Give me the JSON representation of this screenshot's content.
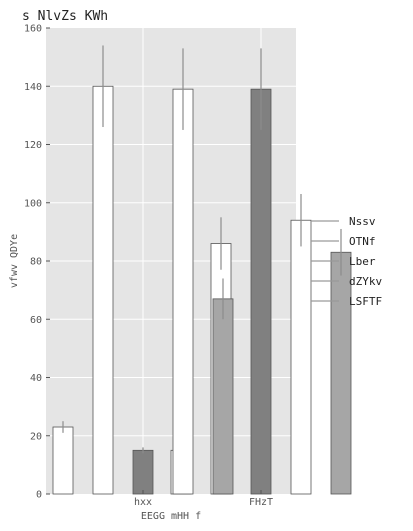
{
  "chart_data": {
    "type": "bar",
    "title": "s NlvZs KWh",
    "xlabel": "EEGG mHH f",
    "ylabel": "vfwv QDYe",
    "categories": [
      "hxx",
      "FHzT"
    ],
    "ylim": [
      0,
      160
    ],
    "yticks": [
      0,
      20,
      40,
      60,
      80,
      100,
      120,
      140,
      160
    ],
    "grid": true,
    "legend_position": "right",
    "series": [
      {
        "name": "Nssv",
        "values": [
          23,
          15
        ],
        "errors": [
          2,
          1
        ],
        "color": "#ffffff"
      },
      {
        "name": "OTNf",
        "values": [
          140,
          86
        ],
        "errors": [
          14,
          9
        ],
        "color": "#ffffff"
      },
      {
        "name": "Lber",
        "values": [
          15,
          139
        ],
        "errors": [
          1,
          14
        ],
        "color": "#808080"
      },
      {
        "name": "dZYkv",
        "values": [
          139,
          94
        ],
        "errors": [
          14,
          9
        ],
        "color": "#ffffff"
      },
      {
        "name": "LSFTF",
        "values": [
          67,
          83
        ],
        "errors": [
          7,
          8
        ],
        "color": "#a6a6a6"
      }
    ],
    "colors": {
      "background": "#e5e5e5",
      "grid": "#ffffff",
      "error_bar": "#8c8c8c",
      "bar_edge": "#555555",
      "text": "#555555"
    }
  }
}
